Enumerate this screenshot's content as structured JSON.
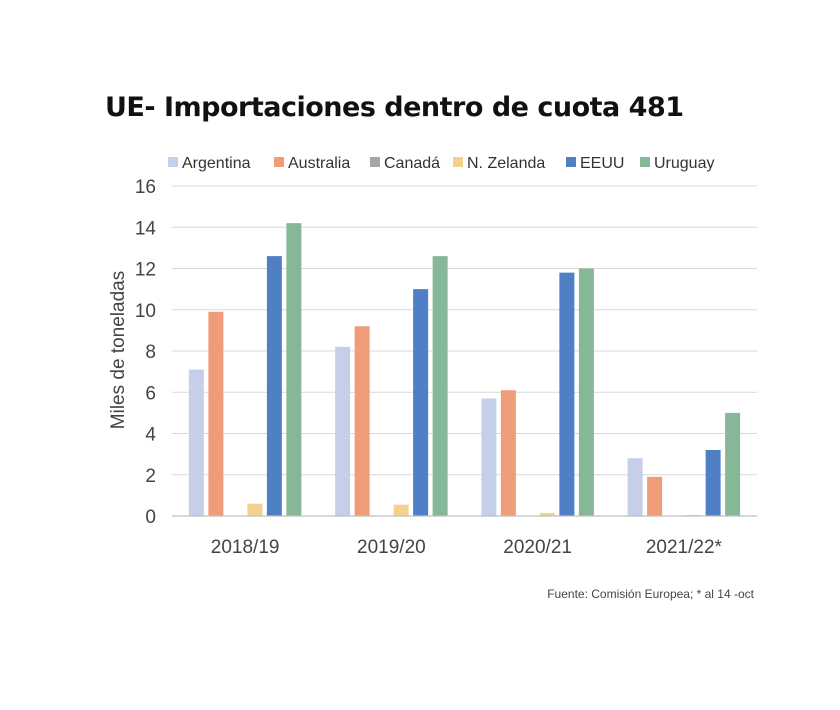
{
  "chart_data": {
    "type": "bar",
    "title": "UE- Importaciones dentro de cuota 481",
    "xlabel": "",
    "ylabel": "Miles de toneladas",
    "ylim": [
      0,
      16
    ],
    "yticks": [
      0,
      2,
      4,
      6,
      8,
      10,
      12,
      14,
      16
    ],
    "grid": true,
    "legend_position": "top",
    "categories": [
      "2018/19",
      "2019/20",
      "2020/21",
      "2021/22*"
    ],
    "series": [
      {
        "name": "Argentina",
        "color": "#c5cfe9",
        "values": [
          7.1,
          8.2,
          5.7,
          2.8
        ]
      },
      {
        "name": "Australia",
        "color": "#f09c79",
        "values": [
          9.9,
          9.2,
          6.1,
          1.9
        ]
      },
      {
        "name": "Canadá",
        "color": "#a6a6a6",
        "values": [
          0,
          0,
          0,
          0
        ]
      },
      {
        "name": "N. Zelanda",
        "color": "#f2d28e",
        "values": [
          0.6,
          0.55,
          0.15,
          0.05
        ]
      },
      {
        "name": "EEUU",
        "color": "#4f7fc4",
        "values": [
          12.6,
          11.0,
          11.8,
          3.2
        ]
      },
      {
        "name": "Uruguay",
        "color": "#86b897",
        "values": [
          14.2,
          12.6,
          12.0,
          5.0
        ]
      }
    ],
    "source": "Fuente: Comisión Europea; * al 14 -oct"
  }
}
